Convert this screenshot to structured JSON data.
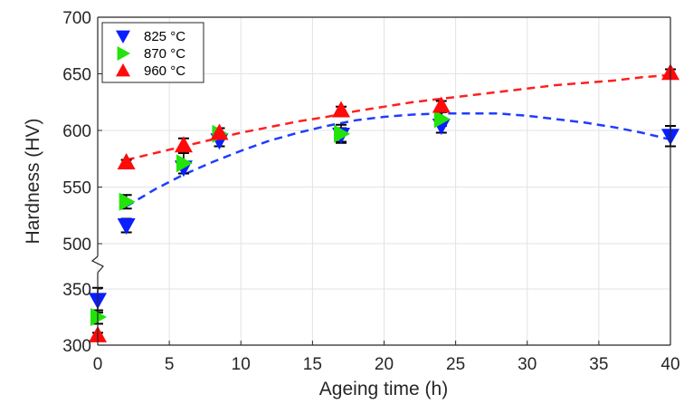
{
  "chart_data": {
    "type": "scatter",
    "xlabel": "Ageing time (h)",
    "ylabel": "Hardness (HV)",
    "xlim": [
      0,
      40
    ],
    "ylim_lower": [
      300,
      350
    ],
    "ylim_upper": [
      500,
      700
    ],
    "axis_break": "y between 350 and 500",
    "x_ticks": [
      "0",
      "5",
      "10",
      "15",
      "20",
      "25",
      "30",
      "35",
      "40"
    ],
    "y_ticks": [
      "300",
      "350",
      "500",
      "550",
      "600",
      "650",
      "700"
    ],
    "grid": true,
    "legend_position": "top-left",
    "series": [
      {
        "name": "825 °C",
        "marker": "triangle-down",
        "color": "#0a1eff",
        "points": [
          {
            "x": 0,
            "y": 340,
            "err": 11
          },
          {
            "x": 2,
            "y": 516,
            "err": 6
          },
          {
            "x": 6,
            "y": 567,
            "err": 5
          },
          {
            "x": 8.5,
            "y": 591,
            "err": 5
          },
          {
            "x": 17,
            "y": 596,
            "err": 6
          },
          {
            "x": 24,
            "y": 604,
            "err": 6
          },
          {
            "x": 40,
            "y": 595,
            "err": 9
          }
        ]
      },
      {
        "name": "870 °C",
        "marker": "triangle-right",
        "color": "#22e30a",
        "points": [
          {
            "x": 0,
            "y": 325,
            "err": 6
          },
          {
            "x": 2,
            "y": 537,
            "err": 6
          },
          {
            "x": 6,
            "y": 571,
            "err": 9
          },
          {
            "x": 8.5,
            "y": 597,
            "err": 5
          },
          {
            "x": 17,
            "y": 597,
            "err": 8
          },
          {
            "x": 24,
            "y": 610,
            "err": 6
          }
        ]
      },
      {
        "name": "960 °C",
        "marker": "triangle-up",
        "color": "#ff0a0a",
        "points": [
          {
            "x": 0,
            "y": 309,
            "err": 2
          },
          {
            "x": 2,
            "y": 572,
            "err": 2
          },
          {
            "x": 6,
            "y": 587,
            "err": 6
          },
          {
            "x": 8.5,
            "y": 598,
            "err": 4
          },
          {
            "x": 17,
            "y": 618,
            "err": 3
          },
          {
            "x": 24,
            "y": 622,
            "err": 4
          },
          {
            "x": 40,
            "y": 651,
            "err": 3
          }
        ]
      }
    ],
    "fits": [
      {
        "series": "825 °C",
        "style": "dashed",
        "color": "#1f3cff",
        "x_from": 2,
        "x_to": 40,
        "points": [
          [
            2,
            533
          ],
          [
            4,
            548
          ],
          [
            6,
            561
          ],
          [
            8,
            572
          ],
          [
            10,
            582
          ],
          [
            12,
            591
          ],
          [
            14,
            598
          ],
          [
            16,
            604
          ],
          [
            18,
            609
          ],
          [
            20,
            612
          ],
          [
            22,
            614
          ],
          [
            24,
            615
          ],
          [
            26,
            615
          ],
          [
            28,
            615
          ],
          [
            30,
            613
          ],
          [
            32,
            610
          ],
          [
            34,
            607
          ],
          [
            36,
            603
          ],
          [
            38,
            598
          ],
          [
            40,
            592
          ]
        ]
      },
      {
        "series": "960 °C",
        "style": "dashed",
        "color": "#ff1f1f",
        "x_from": 2,
        "x_to": 40,
        "points": [
          [
            2,
            574
          ],
          [
            4,
            580
          ],
          [
            6,
            586
          ],
          [
            8,
            592
          ],
          [
            10,
            598
          ],
          [
            12,
            603
          ],
          [
            14,
            608
          ],
          [
            16,
            612
          ],
          [
            18,
            617
          ],
          [
            20,
            621
          ],
          [
            22,
            625
          ],
          [
            24,
            628
          ],
          [
            26,
            631
          ],
          [
            28,
            634
          ],
          [
            30,
            637
          ],
          [
            32,
            640
          ],
          [
            34,
            642
          ],
          [
            36,
            644
          ],
          [
            38,
            647
          ],
          [
            40,
            649
          ]
        ]
      }
    ]
  }
}
